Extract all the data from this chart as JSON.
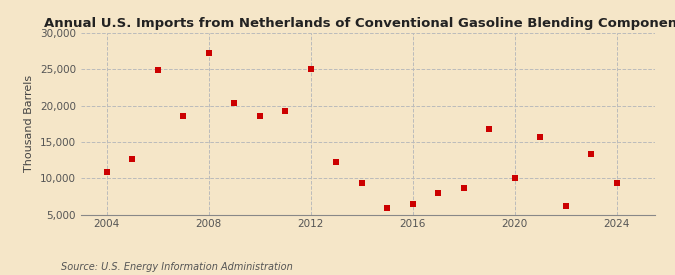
{
  "title": "Annual U.S. Imports from Netherlands of Conventional Gasoline Blending Components",
  "ylabel": "Thousand Barrels",
  "source": "Source: U.S. Energy Information Administration",
  "background_color": "#f5e6c8",
  "plot_bg_color": "#f5e6c8",
  "marker_color": "#cc0000",
  "marker_size": 18,
  "data": [
    [
      2004,
      10800
    ],
    [
      2005,
      12700
    ],
    [
      2006,
      24900
    ],
    [
      2007,
      18600
    ],
    [
      2008,
      27300
    ],
    [
      2009,
      20300
    ],
    [
      2010,
      18500
    ],
    [
      2011,
      19300
    ],
    [
      2012,
      25000
    ],
    [
      2013,
      12300
    ],
    [
      2014,
      9400
    ],
    [
      2015,
      5900
    ],
    [
      2016,
      6400
    ],
    [
      2017,
      8000
    ],
    [
      2018,
      8700
    ],
    [
      2019,
      16800
    ],
    [
      2020,
      10000
    ],
    [
      2021,
      15700
    ],
    [
      2022,
      6200
    ],
    [
      2023,
      13400
    ],
    [
      2024,
      9300
    ]
  ],
  "xlim": [
    2003.0,
    2025.5
  ],
  "ylim": [
    5000,
    30000
  ],
  "xticks": [
    2004,
    2008,
    2012,
    2016,
    2020,
    2024
  ],
  "yticks": [
    5000,
    10000,
    15000,
    20000,
    25000,
    30000
  ],
  "title_fontsize": 9.5,
  "label_fontsize": 8,
  "tick_fontsize": 7.5,
  "source_fontsize": 7
}
